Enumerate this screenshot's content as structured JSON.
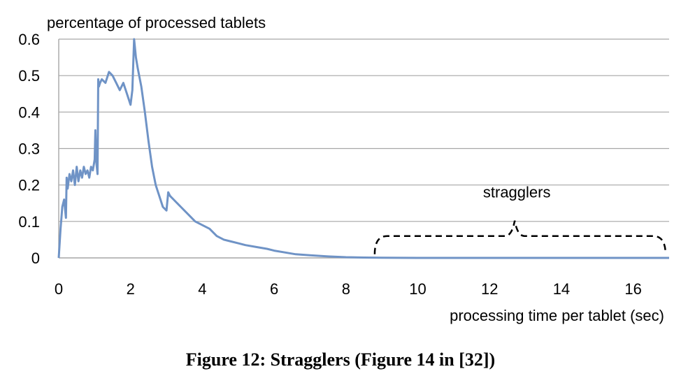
{
  "chart_data": {
    "type": "line",
    "title": "percentage of processed tablets",
    "xlabel": "processing time per tablet (sec)",
    "ylabel": "",
    "xlim": [
      0,
      17
    ],
    "ylim": [
      0,
      0.6
    ],
    "x_ticks": [
      0,
      2,
      4,
      6,
      8,
      10,
      12,
      14,
      16
    ],
    "y_ticks": [
      0,
      0.1,
      0.2,
      0.3,
      0.4,
      0.5,
      0.6
    ],
    "x_tick_labels": [
      "0",
      "2",
      "4",
      "6",
      "8",
      "10",
      "12",
      "14",
      "16"
    ],
    "y_tick_labels": [
      "0",
      "0.1",
      "0.2",
      "0.3",
      "0.4",
      "0.5",
      "0.6"
    ],
    "grid": true,
    "line_color": "#6f93c6",
    "series": [
      {
        "x": [
          0,
          0.05,
          0.1,
          0.15,
          0.2,
          0.22,
          0.25,
          0.3,
          0.35,
          0.4,
          0.45,
          0.5,
          0.55,
          0.6,
          0.65,
          0.7,
          0.75,
          0.8,
          0.85,
          0.9,
          0.95,
          1.0,
          1.02,
          1.05,
          1.08,
          1.1,
          1.12,
          1.15,
          1.2,
          1.3,
          1.4,
          1.5,
          1.6,
          1.7,
          1.8,
          1.9,
          2.0,
          2.05,
          2.1,
          2.15,
          2.2,
          2.3,
          2.4,
          2.5,
          2.6,
          2.7,
          2.8,
          2.9,
          3.0,
          3.05,
          3.1,
          3.2,
          3.4,
          3.6,
          3.8,
          4.0,
          4.2,
          4.4,
          4.6,
          4.8,
          5.0,
          5.2,
          5.5,
          5.8,
          6.0,
          6.3,
          6.6,
          7.0,
          7.5,
          8.0,
          8.5,
          9.0,
          10.0,
          12.0,
          14.0,
          16.0,
          17.0
        ],
        "y": [
          0,
          0.08,
          0.14,
          0.16,
          0.11,
          0.22,
          0.19,
          0.23,
          0.21,
          0.24,
          0.2,
          0.25,
          0.21,
          0.24,
          0.22,
          0.25,
          0.23,
          0.24,
          0.22,
          0.25,
          0.24,
          0.27,
          0.35,
          0.26,
          0.23,
          0.49,
          0.47,
          0.48,
          0.49,
          0.48,
          0.51,
          0.5,
          0.48,
          0.46,
          0.48,
          0.45,
          0.42,
          0.46,
          0.6,
          0.55,
          0.52,
          0.47,
          0.4,
          0.32,
          0.25,
          0.2,
          0.17,
          0.14,
          0.13,
          0.18,
          0.17,
          0.16,
          0.14,
          0.12,
          0.1,
          0.09,
          0.08,
          0.06,
          0.05,
          0.045,
          0.04,
          0.035,
          0.03,
          0.025,
          0.02,
          0.015,
          0.01,
          0.007,
          0.004,
          0.002,
          0.001,
          0.0005,
          0,
          0,
          0,
          0,
          0
        ]
      }
    ],
    "annotation": {
      "text": "stragglers",
      "brace_x_range": [
        8.8,
        16.9
      ],
      "brace_x_peak": 12.7,
      "brace_y": 0.06,
      "label_y": 0.17
    }
  },
  "caption": "Figure 12: Stragglers (Figure 14 in [32])"
}
